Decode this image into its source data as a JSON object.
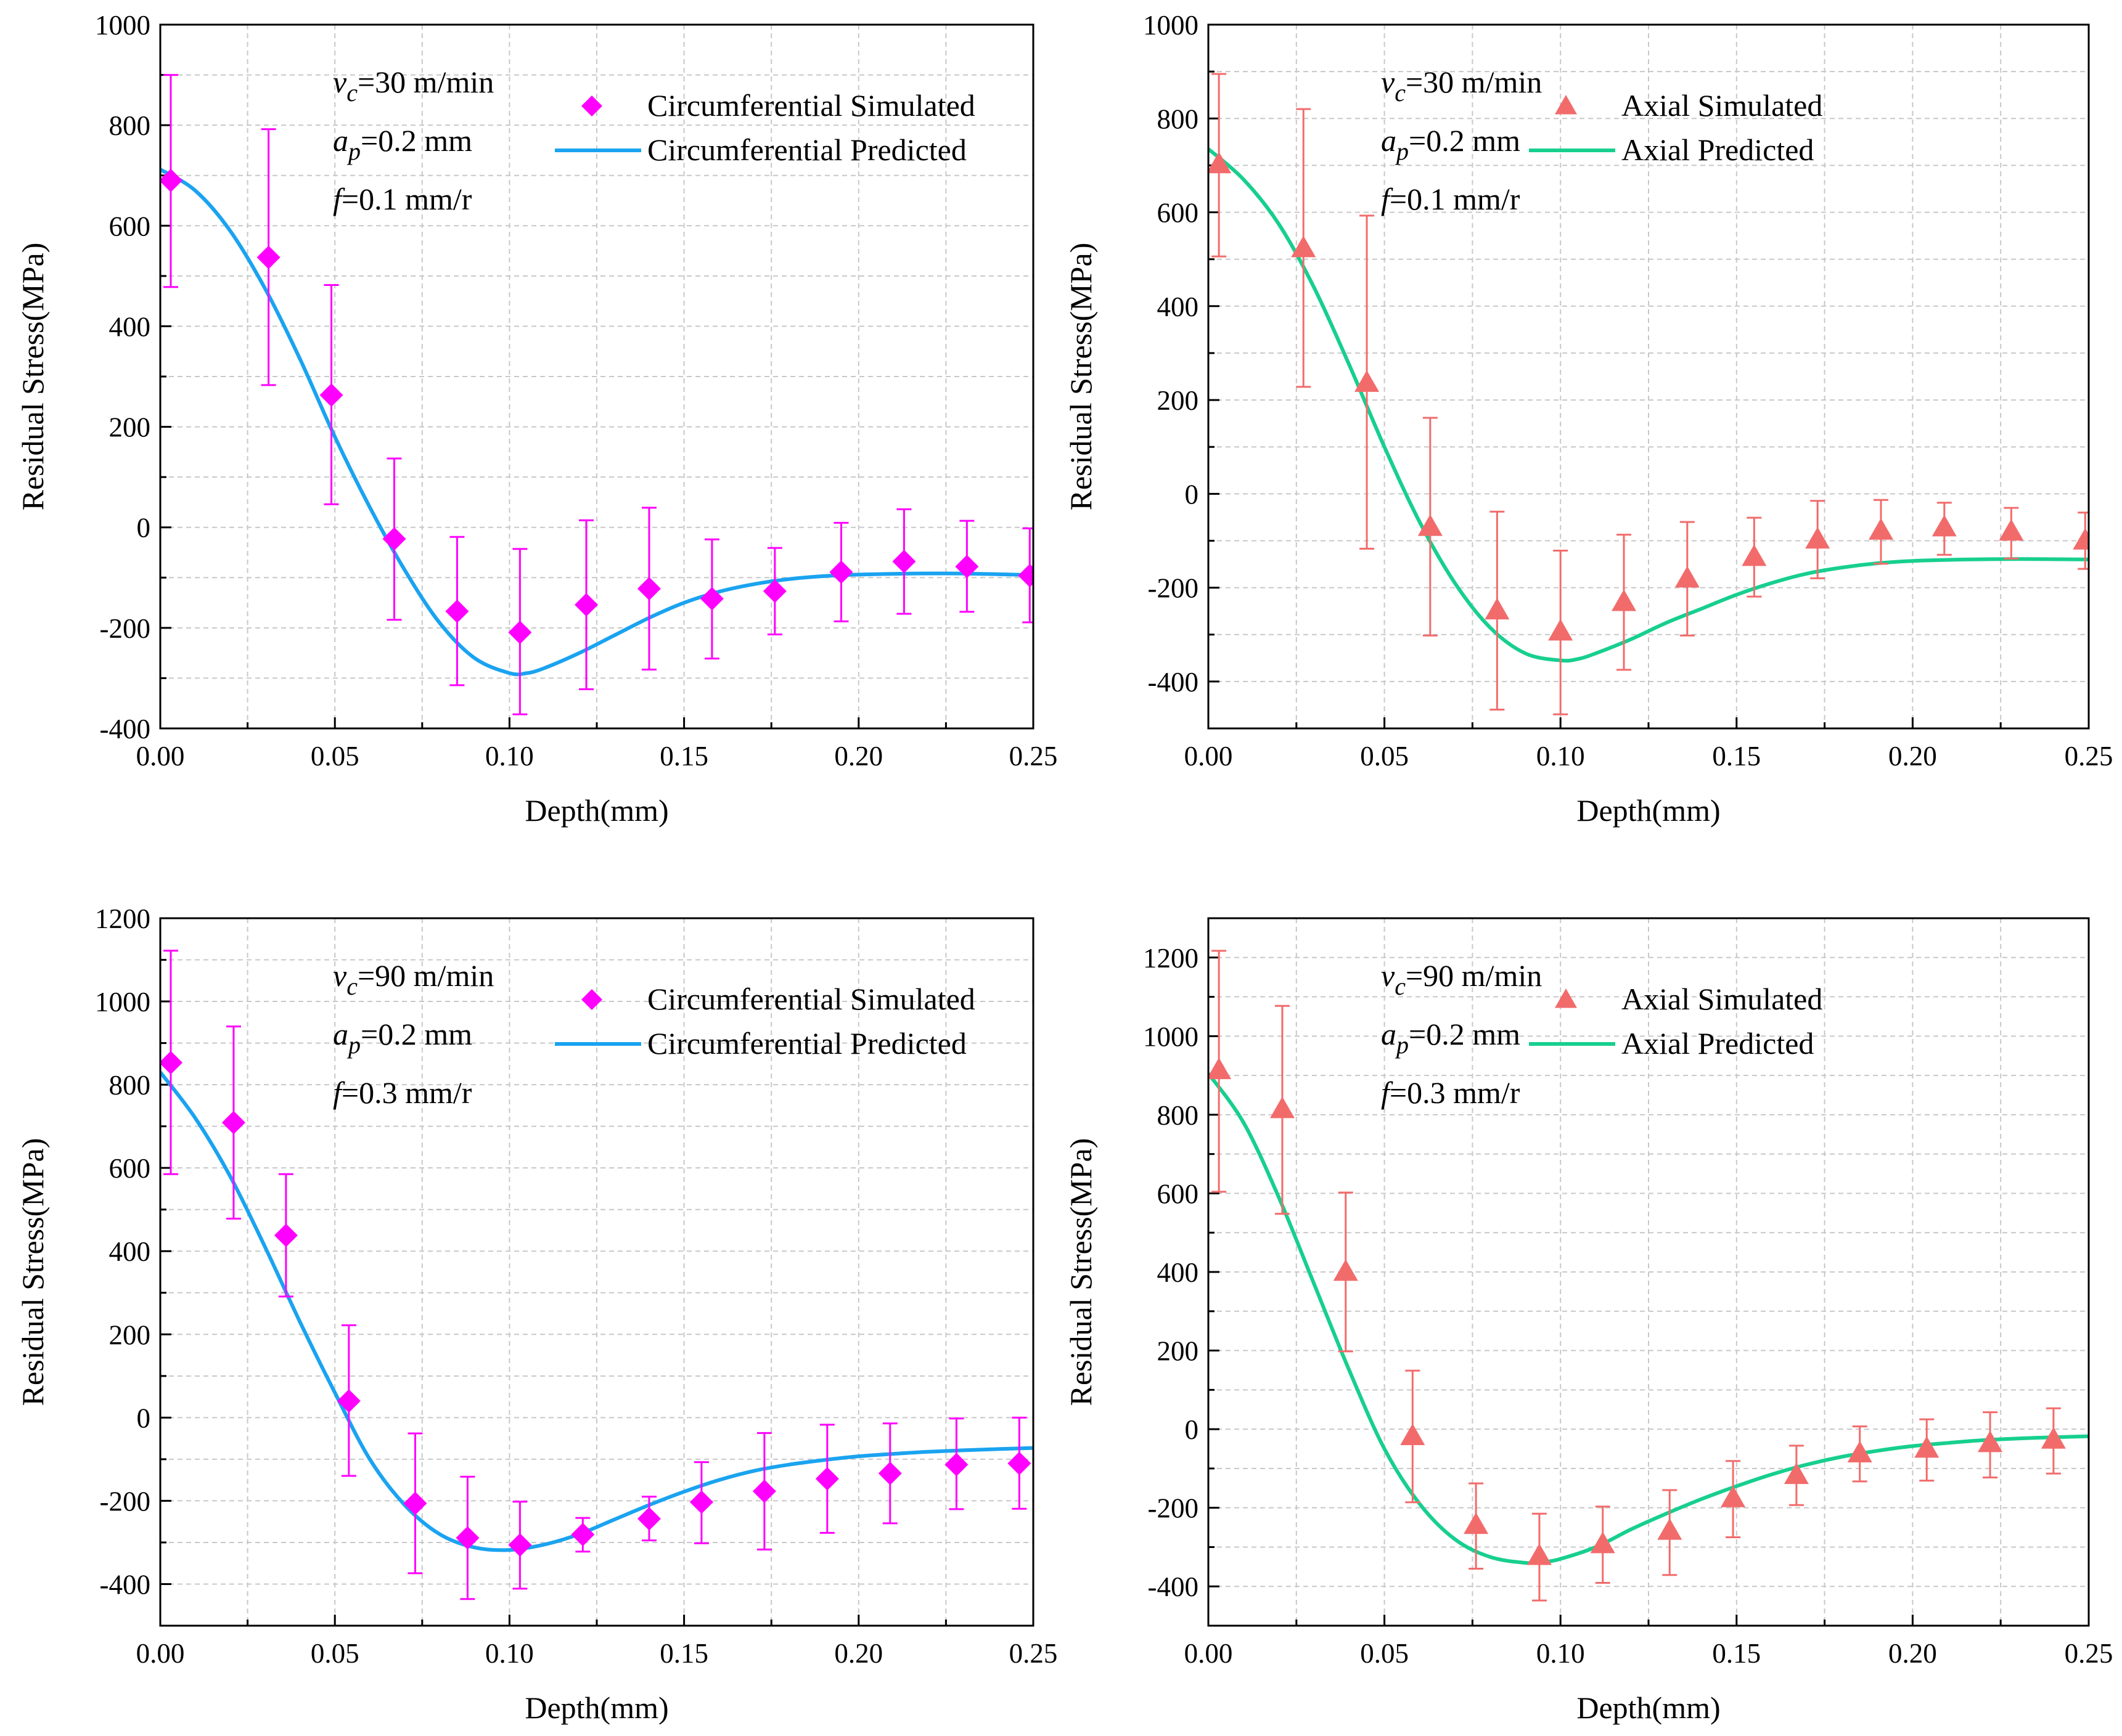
{
  "chart_data": [
    {
      "type": "line",
      "xlabel": "Depth(mm)",
      "ylabel": "Residual Stress(MPa)",
      "xlim": [
        0,
        0.25
      ],
      "ylim": [
        -400,
        1000
      ],
      "xticks": [
        0.0,
        0.05,
        0.1,
        0.15,
        0.2,
        0.25
      ],
      "xtick_labels": [
        "0.00",
        "0.05",
        "0.10",
        "0.15",
        "0.20",
        "0.25"
      ],
      "yticks": [
        -400,
        -200,
        0,
        200,
        400,
        600,
        800,
        1000
      ],
      "ytick_labels": [
        "-400",
        "-200",
        "0",
        "200",
        "400",
        "600",
        "800",
        "1000"
      ],
      "grid": true,
      "annotations": [
        {
          "var": "v",
          "sub": "c",
          "rest": "=30 m/min"
        },
        {
          "var": "a",
          "sub": "p",
          "rest": "=0.2 mm"
        },
        {
          "var": "f",
          "sub": "",
          "rest": "=0.1 mm/r"
        }
      ],
      "legend_position": "top-right",
      "series": [
        {
          "name": "Circumferential Simulated",
          "kind": "scatter",
          "marker": "diamond",
          "color": "#FF00FF",
          "x": [
            0.003,
            0.031,
            0.049,
            0.067,
            0.085,
            0.103,
            0.122,
            0.14,
            0.158,
            0.176,
            0.195,
            0.213,
            0.231,
            0.249
          ],
          "y": [
            690,
            537,
            263,
            -23,
            -167,
            -209,
            -154,
            -122,
            -142,
            -127,
            -89,
            -68,
            -78,
            -96
          ],
          "yerr_low": [
            478,
            283,
            46,
            -184,
            -314,
            -372,
            -322,
            -283,
            -261,
            -213,
            -187,
            -172,
            -168,
            -189
          ],
          "yerr_high": [
            900,
            792,
            482,
            137,
            -19,
            -43,
            14,
            39,
            -24,
            -41,
            9,
            36,
            13,
            -2
          ]
        },
        {
          "name": "Circumferential Predicted",
          "kind": "line",
          "color": "#1AA3F0",
          "x": [
            0.0,
            0.01,
            0.02,
            0.03,
            0.04,
            0.05,
            0.06,
            0.07,
            0.08,
            0.09,
            0.1,
            0.105,
            0.11,
            0.12,
            0.13,
            0.14,
            0.15,
            0.16,
            0.17,
            0.18,
            0.19,
            0.2,
            0.215,
            0.23,
            0.25
          ],
          "y": [
            712,
            670,
            590,
            475,
            335,
            180,
            40,
            -85,
            -190,
            -260,
            -290,
            -290,
            -280,
            -250,
            -215,
            -180,
            -150,
            -128,
            -113,
            -103,
            -97,
            -94,
            -92,
            -92,
            -95
          ]
        }
      ]
    },
    {
      "type": "line",
      "xlabel": "Depth(mm)",
      "ylabel": "Residual Stress(MPa)",
      "xlim": [
        0,
        0.25
      ],
      "ylim": [
        -500,
        1000
      ],
      "xticks": [
        0.0,
        0.05,
        0.1,
        0.15,
        0.2,
        0.25
      ],
      "xtick_labels": [
        "0.00",
        "0.05",
        "0.10",
        "0.15",
        "0.20",
        "0.25"
      ],
      "yticks": [
        -400,
        -200,
        0,
        200,
        400,
        600,
        800,
        1000
      ],
      "ytick_labels": [
        "-400",
        "-200",
        "0",
        "200",
        "400",
        "600",
        "800",
        "1000"
      ],
      "grid": true,
      "annotations": [
        {
          "var": "v",
          "sub": "c",
          "rest": "=30 m/min"
        },
        {
          "var": "a",
          "sub": "p",
          "rest": "=0.2 mm"
        },
        {
          "var": "f",
          "sub": "",
          "rest": "=0.1 mm/r"
        }
      ],
      "legend_position": "top-right",
      "series": [
        {
          "name": "Axial Simulated",
          "kind": "scatter",
          "marker": "triangle",
          "color": "#F26B6B",
          "x": [
            0.003,
            0.027,
            0.045,
            0.063,
            0.082,
            0.1,
            0.118,
            0.136,
            0.155,
            0.173,
            0.191,
            0.209,
            0.228,
            0.249
          ],
          "y": [
            703,
            524,
            237,
            -70,
            -248,
            -293,
            -230,
            -180,
            -134,
            -97,
            -78,
            -71,
            -80,
            -99
          ],
          "yerr_low": [
            506,
            228,
            -117,
            -302,
            -460,
            -470,
            -375,
            -302,
            -219,
            -180,
            -149,
            -130,
            -138,
            -160
          ],
          "yerr_high": [
            895,
            820,
            593,
            162,
            -38,
            -121,
            -87,
            -60,
            -51,
            -15,
            -13,
            -19,
            -30,
            -40
          ]
        },
        {
          "name": "Axial Predicted",
          "kind": "line",
          "color": "#17CF8E",
          "x": [
            0.0,
            0.01,
            0.02,
            0.03,
            0.04,
            0.05,
            0.06,
            0.07,
            0.08,
            0.09,
            0.1,
            0.105,
            0.11,
            0.12,
            0.13,
            0.14,
            0.15,
            0.16,
            0.17,
            0.18,
            0.19,
            0.2,
            0.215,
            0.23,
            0.25
          ],
          "y": [
            735,
            670,
            575,
            440,
            275,
            100,
            -60,
            -190,
            -285,
            -340,
            -355,
            -352,
            -340,
            -310,
            -275,
            -245,
            -215,
            -190,
            -170,
            -157,
            -148,
            -143,
            -140,
            -139,
            -140
          ]
        }
      ]
    },
    {
      "type": "line",
      "xlabel": "Depth(mm)",
      "ylabel": "Residual Stress(MPa)",
      "xlim": [
        0,
        0.25
      ],
      "ylim": [
        -500,
        1200
      ],
      "xticks": [
        0.0,
        0.05,
        0.1,
        0.15,
        0.2,
        0.25
      ],
      "xtick_labels": [
        "0.00",
        "0.05",
        "0.10",
        "0.15",
        "0.20",
        "0.25"
      ],
      "yticks": [
        -400,
        -200,
        0,
        200,
        400,
        600,
        800,
        1000,
        1200
      ],
      "ytick_labels": [
        "-400",
        "-200",
        "0",
        "200",
        "400",
        "600",
        "800",
        "1000",
        "1200"
      ],
      "grid": true,
      "annotations": [
        {
          "var": "v",
          "sub": "c",
          "rest": "=90 m/min"
        },
        {
          "var": "a",
          "sub": "p",
          "rest": "=0.2 mm"
        },
        {
          "var": "f",
          "sub": "",
          "rest": "=0.3 mm/r"
        }
      ],
      "legend_position": "top-right",
      "series": [
        {
          "name": "Circumferential Simulated",
          "kind": "scatter",
          "marker": "diamond",
          "color": "#FF00FF",
          "x": [
            0.003,
            0.021,
            0.036,
            0.054,
            0.073,
            0.088,
            0.103,
            0.121,
            0.14,
            0.155,
            0.173,
            0.191,
            0.209,
            0.228,
            0.246
          ],
          "y": [
            853,
            709,
            438,
            40,
            -206,
            -289,
            -306,
            -281,
            -243,
            -203,
            -177,
            -147,
            -134,
            -113,
            -110
          ],
          "yerr_low": [
            585,
            478,
            291,
            -140,
            -374,
            -436,
            -411,
            -322,
            -295,
            -302,
            -317,
            -277,
            -254,
            -220,
            -219
          ],
          "yerr_high": [
            1122,
            940,
            585,
            222,
            -38,
            -142,
            -202,
            -241,
            -190,
            -107,
            -37,
            -17,
            -14,
            -2,
            0
          ]
        },
        {
          "name": "Circumferential Predicted",
          "kind": "line",
          "color": "#1AA3F0",
          "x": [
            0.0,
            0.01,
            0.02,
            0.03,
            0.04,
            0.05,
            0.06,
            0.07,
            0.08,
            0.09,
            0.1,
            0.11,
            0.12,
            0.13,
            0.14,
            0.15,
            0.16,
            0.17,
            0.18,
            0.19,
            0.2,
            0.21,
            0.22,
            0.235,
            0.25
          ],
          "y": [
            830,
            720,
            580,
            410,
            230,
            60,
            -100,
            -210,
            -280,
            -312,
            -318,
            -305,
            -280,
            -245,
            -210,
            -178,
            -150,
            -128,
            -113,
            -102,
            -93,
            -87,
            -82,
            -77,
            -73
          ]
        }
      ]
    },
    {
      "type": "line",
      "xlabel": "Depth(mm)",
      "ylabel": "Residual Stress(MPa)",
      "xlim": [
        0,
        0.25
      ],
      "ylim": [
        -500,
        1300
      ],
      "xticks": [
        0.0,
        0.05,
        0.1,
        0.15,
        0.2,
        0.25
      ],
      "xtick_labels": [
        "0.00",
        "0.05",
        "0.10",
        "0.15",
        "0.20",
        "0.25"
      ],
      "yticks": [
        -400,
        -200,
        0,
        200,
        400,
        600,
        800,
        1000,
        1200
      ],
      "ytick_labels": [
        "-400",
        "-200",
        "0",
        "200",
        "400",
        "600",
        "800",
        "1000",
        "1200"
      ],
      "grid": true,
      "annotations": [
        {
          "var": "v",
          "sub": "c",
          "rest": "=90 m/min"
        },
        {
          "var": "a",
          "sub": "p",
          "rest": "=0.2 mm"
        },
        {
          "var": "f",
          "sub": "",
          "rest": "=0.3 mm/r"
        }
      ],
      "legend_position": "top-right",
      "series": [
        {
          "name": "Axial Simulated",
          "kind": "scatter",
          "marker": "triangle",
          "color": "#F26B6B",
          "x": [
            0.003,
            0.021,
            0.039,
            0.058,
            0.076,
            0.094,
            0.112,
            0.131,
            0.149,
            0.167,
            0.185,
            0.204,
            0.222,
            0.24
          ],
          "y": [
            914,
            815,
            401,
            -17,
            -243,
            -322,
            -292,
            -258,
            -175,
            -116,
            -61,
            -49,
            -35,
            -26
          ],
          "yerr_low": [
            604,
            548,
            198,
            -186,
            -355,
            -436,
            -391,
            -371,
            -275,
            -193,
            -133,
            -131,
            -123,
            -113
          ],
          "yerr_high": [
            1217,
            1077,
            602,
            149,
            -138,
            -215,
            -197,
            -155,
            -81,
            -42,
            7,
            25,
            43,
            53
          ]
        },
        {
          "name": "Axial Predicted",
          "kind": "line",
          "color": "#17CF8E",
          "x": [
            0.0,
            0.01,
            0.02,
            0.03,
            0.04,
            0.05,
            0.06,
            0.07,
            0.08,
            0.09,
            0.095,
            0.1,
            0.11,
            0.12,
            0.13,
            0.14,
            0.15,
            0.16,
            0.17,
            0.18,
            0.19,
            0.2,
            0.21,
            0.22,
            0.235,
            0.25
          ],
          "y": [
            905,
            780,
            590,
            370,
            150,
            -50,
            -190,
            -280,
            -325,
            -340,
            -338,
            -330,
            -300,
            -255,
            -215,
            -178,
            -145,
            -115,
            -90,
            -70,
            -55,
            -43,
            -35,
            -28,
            -22,
            -18
          ]
        }
      ]
    }
  ]
}
